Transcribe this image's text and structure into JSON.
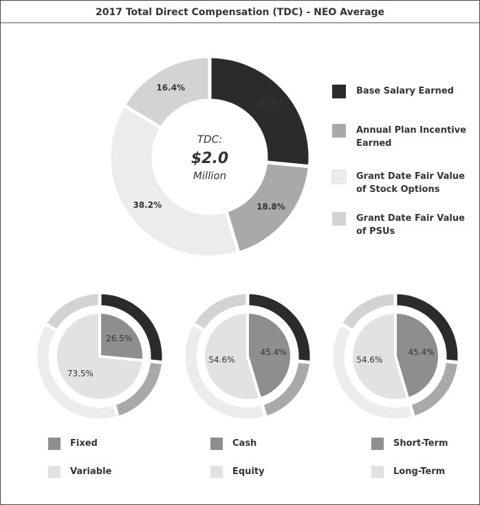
{
  "chart_data": [
    {
      "type": "donut",
      "title": "2017 Total Direct Compensation (TDC) - NEO Average",
      "center_text": [
        "TDC:",
        "$2.0",
        "Million"
      ],
      "categories": [
        "Base Salary Earned",
        "Annual Plan Incentive Earned",
        "Grant Date Fair Value of Stock Options",
        "Grant Date Fair Value of PSUs"
      ],
      "values": [
        26.5,
        18.8,
        38.2,
        16.4
      ],
      "value_labels": [
        "26.5%",
        "18.8%",
        "38.2%",
        "16.4%"
      ],
      "colors": [
        "#2b2b2b",
        "#a9a9a9",
        "#ececec",
        "#d3d3d3"
      ]
    },
    {
      "type": "nested-donut",
      "outer": {
        "values": [
          26.5,
          18.8,
          38.2,
          16.4
        ],
        "colors": [
          "#2b2b2b",
          "#a9a9a9",
          "#ececec",
          "#d3d3d3"
        ]
      },
      "categories": [
        "Fixed",
        "Variable"
      ],
      "values": [
        26.5,
        73.5
      ],
      "value_labels": [
        "26.5%",
        "73.5%"
      ],
      "colors": [
        "#8e8e8e",
        "#e2e2e2"
      ]
    },
    {
      "type": "nested-donut",
      "outer": {
        "values": [
          26.5,
          18.8,
          38.2,
          16.4
        ],
        "colors": [
          "#2b2b2b",
          "#a9a9a9",
          "#ececec",
          "#d3d3d3"
        ]
      },
      "categories": [
        "Cash",
        "Equity"
      ],
      "values": [
        45.4,
        54.6
      ],
      "value_labels": [
        "45.4%",
        "54.6%"
      ],
      "colors": [
        "#8e8e8e",
        "#e2e2e2"
      ]
    },
    {
      "type": "nested-donut",
      "outer": {
        "values": [
          26.5,
          18.8,
          38.2,
          16.4
        ],
        "colors": [
          "#2b2b2b",
          "#a9a9a9",
          "#ececec",
          "#d3d3d3"
        ]
      },
      "categories": [
        "Short-Term",
        "Long-Term"
      ],
      "values": [
        45.4,
        54.6
      ],
      "value_labels": [
        "45.4%",
        "54.6%"
      ],
      "colors": [
        "#8e8e8e",
        "#e2e2e2"
      ]
    }
  ]
}
